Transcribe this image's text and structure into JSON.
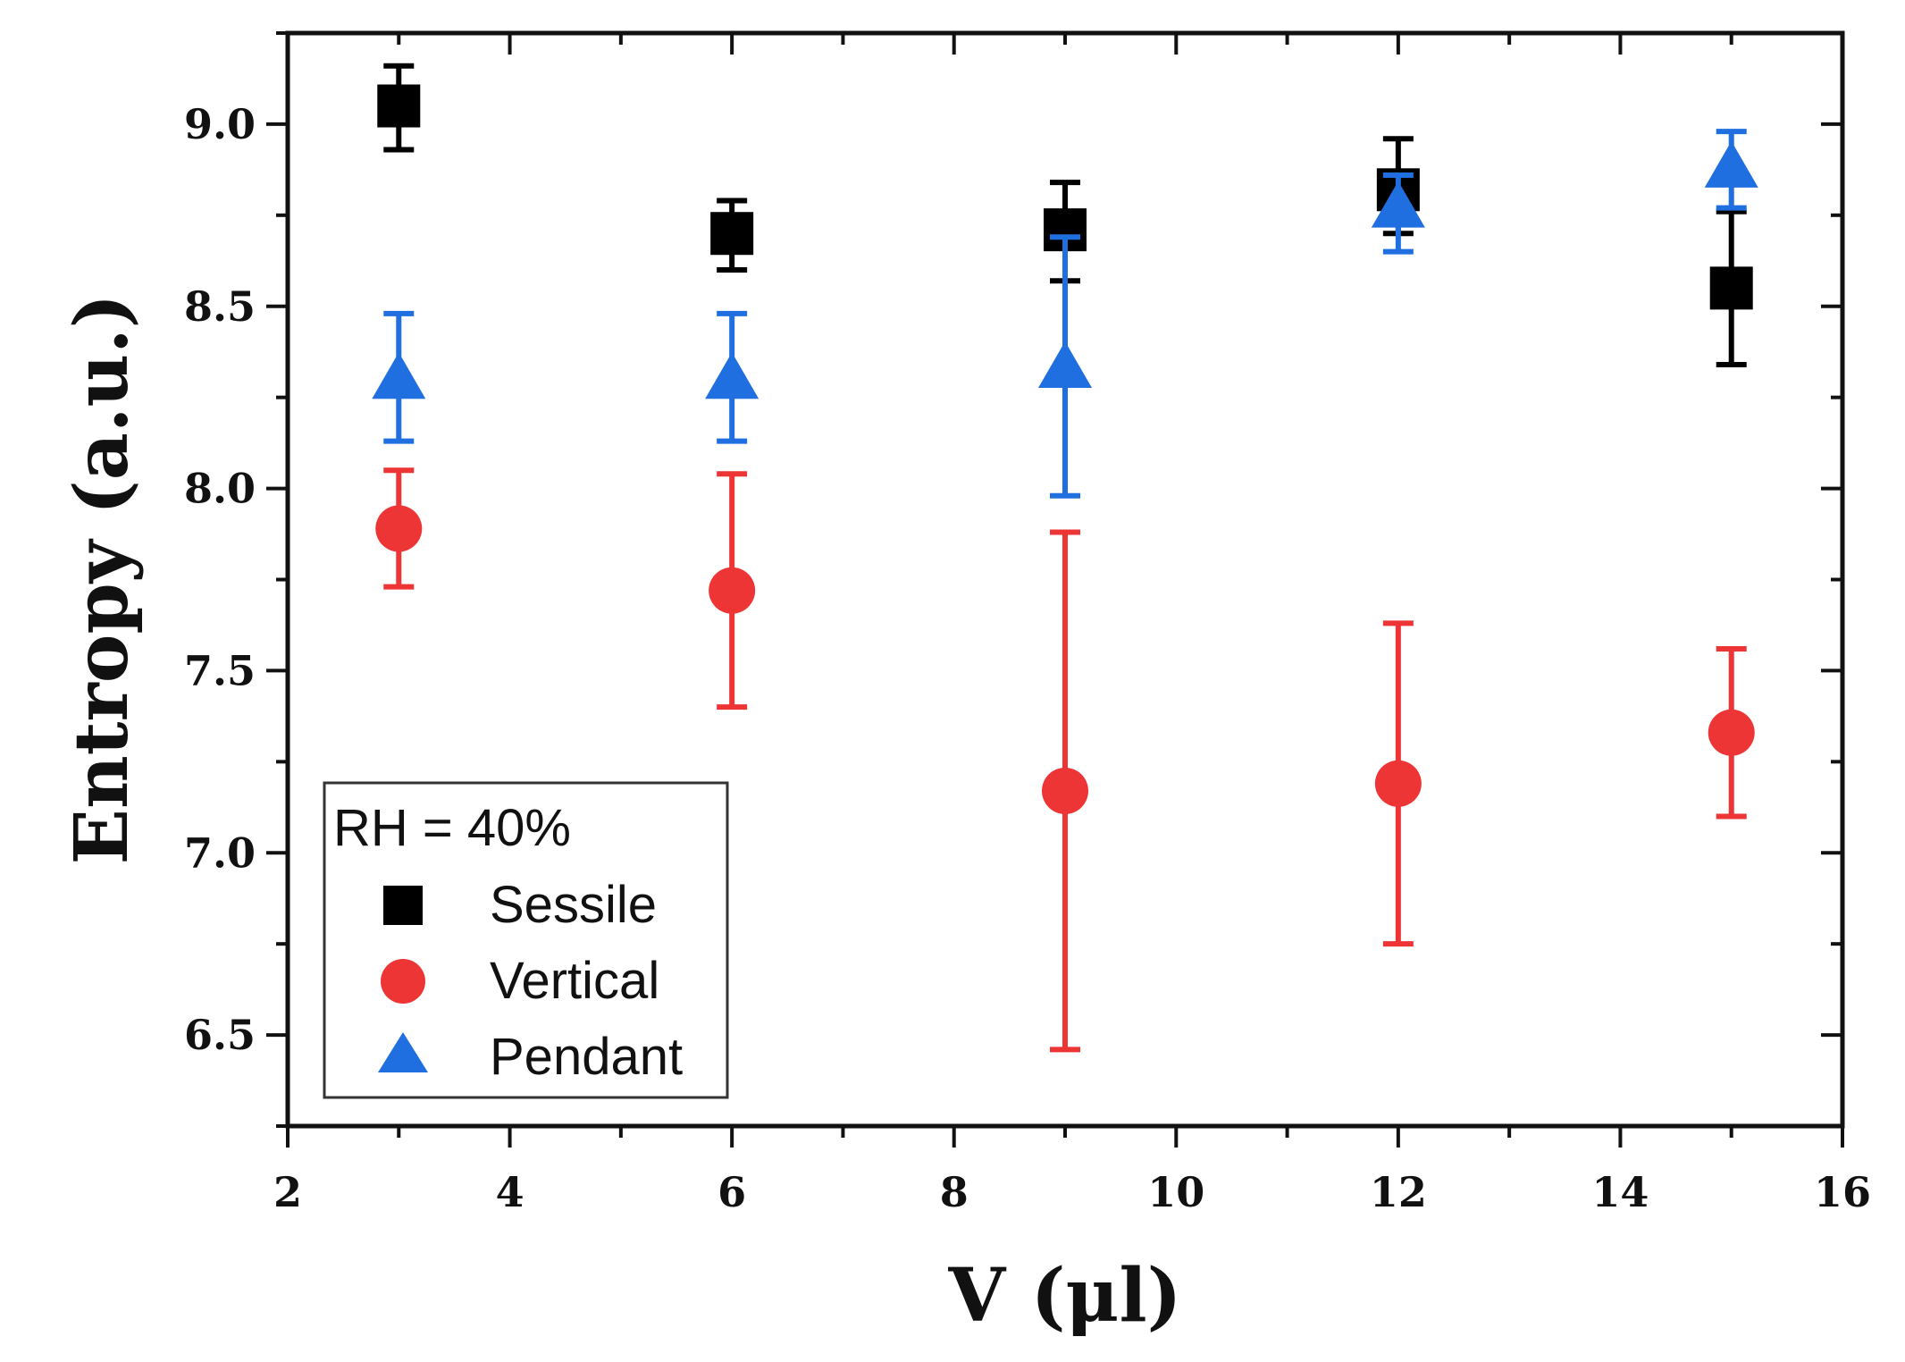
{
  "chart_data": {
    "type": "scatter",
    "title": "",
    "xlabel": "V (μl)",
    "ylabel": "Entropy (a.u.)",
    "xlim": [
      2,
      16
    ],
    "ylim": [
      6.25,
      9.25
    ],
    "xticks": [
      2,
      4,
      6,
      8,
      10,
      12,
      14,
      16
    ],
    "xtick_labels": [
      "2",
      "4",
      "6",
      "8",
      "10",
      "12",
      "14",
      "16"
    ],
    "yticks": [
      6.5,
      7.0,
      7.5,
      8.0,
      8.5,
      9.0
    ],
    "ytick_labels": [
      "6.5",
      "7.0",
      "7.5",
      "8.0",
      "8.5",
      "9.0"
    ],
    "grid": false,
    "legend": {
      "title": "RH = 40%",
      "placement": "bottom-left"
    },
    "series": [
      {
        "name": "Sessile",
        "marker": "square",
        "color": "#000000",
        "x": [
          3,
          6,
          9,
          12,
          15
        ],
        "y": [
          9.05,
          8.7,
          8.71,
          8.82,
          8.55
        ],
        "err_low": [
          8.93,
          8.6,
          8.57,
          8.7,
          8.34
        ],
        "err_high": [
          9.16,
          8.79,
          8.84,
          8.96,
          8.76
        ]
      },
      {
        "name": "Vertical",
        "marker": "circle",
        "color": "#ee3535",
        "x": [
          3,
          6,
          9,
          12,
          15
        ],
        "y": [
          7.89,
          7.72,
          7.17,
          7.19,
          7.33
        ],
        "err_low": [
          7.73,
          7.4,
          6.46,
          6.75,
          7.1
        ],
        "err_high": [
          8.05,
          8.04,
          7.88,
          7.63,
          7.56
        ]
      },
      {
        "name": "Pendant",
        "marker": "triangle",
        "color": "#1f6fe0",
        "x": [
          3,
          6,
          9,
          12,
          15
        ],
        "y": [
          8.3,
          8.3,
          8.33,
          8.77,
          8.88
        ],
        "err_low": [
          8.13,
          8.13,
          7.98,
          8.65,
          8.77
        ],
        "err_high": [
          8.48,
          8.48,
          8.69,
          8.86,
          8.98
        ]
      }
    ]
  }
}
